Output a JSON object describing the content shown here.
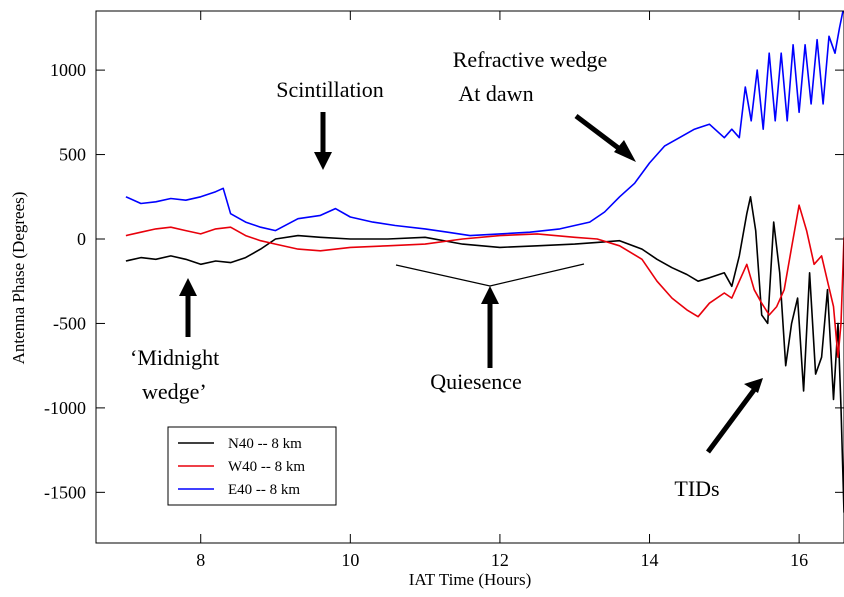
{
  "chart_data": {
    "type": "line",
    "title": "",
    "xlabel": "IAT Time (Hours)",
    "ylabel": "Antenna Phase (Degrees)",
    "xlim": [
      6.6,
      16.6
    ],
    "ylim": [
      -1800,
      1350
    ],
    "x_ticks": [
      8,
      10,
      12,
      14,
      16
    ],
    "y_ticks": [
      -1500,
      -1000,
      -500,
      0,
      500,
      1000
    ],
    "grid": false,
    "legend_position": "bottom-left",
    "series": [
      {
        "name": "N40 -- 8 km",
        "color": "#000000",
        "x": [
          7.0,
          7.2,
          7.4,
          7.6,
          7.8,
          8.0,
          8.2,
          8.4,
          8.6,
          8.8,
          9.0,
          9.3,
          9.6,
          10.0,
          10.5,
          11.0,
          11.5,
          12.0,
          12.5,
          13.0,
          13.3,
          13.6,
          13.9,
          14.1,
          14.3,
          14.5,
          14.65,
          14.8,
          15.0,
          15.1,
          15.2,
          15.3,
          15.35,
          15.42,
          15.5,
          15.58,
          15.66,
          15.74,
          15.82,
          15.9,
          15.98,
          16.06,
          16.14,
          16.22,
          16.3,
          16.38,
          16.46,
          16.52,
          16.56,
          16.6
        ],
        "y": [
          -130,
          -110,
          -120,
          -100,
          -120,
          -150,
          -130,
          -140,
          -110,
          -60,
          0,
          20,
          10,
          0,
          0,
          10,
          -30,
          -50,
          -40,
          -30,
          -20,
          -10,
          -60,
          -120,
          -170,
          -210,
          -250,
          -230,
          -200,
          -280,
          -100,
          150,
          250,
          50,
          -450,
          -500,
          100,
          -200,
          -750,
          -500,
          -350,
          -900,
          -200,
          -800,
          -700,
          -300,
          -950,
          -500,
          -1000,
          -1620
        ]
      },
      {
        "name": "W40 -- 8 km",
        "color": "#e8000b",
        "x": [
          7.0,
          7.2,
          7.4,
          7.6,
          7.8,
          8.0,
          8.2,
          8.4,
          8.6,
          8.8,
          9.0,
          9.3,
          9.6,
          10.0,
          10.5,
          11.0,
          11.5,
          12.0,
          12.5,
          13.0,
          13.3,
          13.6,
          13.9,
          14.1,
          14.3,
          14.5,
          14.65,
          14.8,
          15.0,
          15.1,
          15.2,
          15.3,
          15.4,
          15.5,
          15.6,
          15.7,
          15.8,
          15.9,
          16.0,
          16.1,
          16.2,
          16.3,
          16.38,
          16.46,
          16.52,
          16.56,
          16.6
        ],
        "y": [
          20,
          40,
          60,
          70,
          50,
          30,
          60,
          70,
          20,
          -10,
          -30,
          -60,
          -70,
          -50,
          -40,
          -30,
          0,
          20,
          30,
          10,
          0,
          -40,
          -120,
          -250,
          -350,
          -420,
          -460,
          -380,
          -320,
          -350,
          -250,
          -150,
          -300,
          -380,
          -450,
          -400,
          -300,
          -50,
          200,
          50,
          -150,
          -100,
          -250,
          -400,
          -700,
          -500,
          10
        ]
      },
      {
        "name": "E40 -- 8 km",
        "color": "#0000ff",
        "x": [
          7.0,
          7.2,
          7.4,
          7.6,
          7.8,
          8.0,
          8.2,
          8.3,
          8.4,
          8.6,
          8.8,
          9.0,
          9.3,
          9.6,
          9.8,
          10.0,
          10.3,
          10.6,
          11.0,
          11.3,
          11.6,
          12.0,
          12.4,
          12.8,
          13.0,
          13.2,
          13.4,
          13.6,
          13.8,
          14.0,
          14.2,
          14.4,
          14.6,
          14.8,
          15.0,
          15.1,
          15.2,
          15.28,
          15.36,
          15.44,
          15.52,
          15.6,
          15.68,
          15.76,
          15.84,
          15.92,
          16.0,
          16.08,
          16.16,
          16.24,
          16.32,
          16.4,
          16.48,
          16.54,
          16.6
        ],
        "y": [
          250,
          210,
          220,
          240,
          230,
          250,
          280,
          300,
          150,
          100,
          70,
          50,
          120,
          140,
          180,
          130,
          100,
          80,
          60,
          40,
          20,
          30,
          40,
          60,
          80,
          100,
          160,
          250,
          330,
          450,
          550,
          600,
          650,
          680,
          600,
          650,
          600,
          900,
          700,
          1000,
          650,
          1100,
          700,
          1100,
          700,
          1150,
          750,
          1150,
          800,
          1180,
          800,
          1200,
          1100,
          1250,
          1380
        ]
      }
    ],
    "annotations": [
      "Scintillation",
      "Refractive wedge",
      "At dawn",
      "‘Midnight",
      "wedge’",
      "Quiesence",
      "TIDs"
    ]
  }
}
